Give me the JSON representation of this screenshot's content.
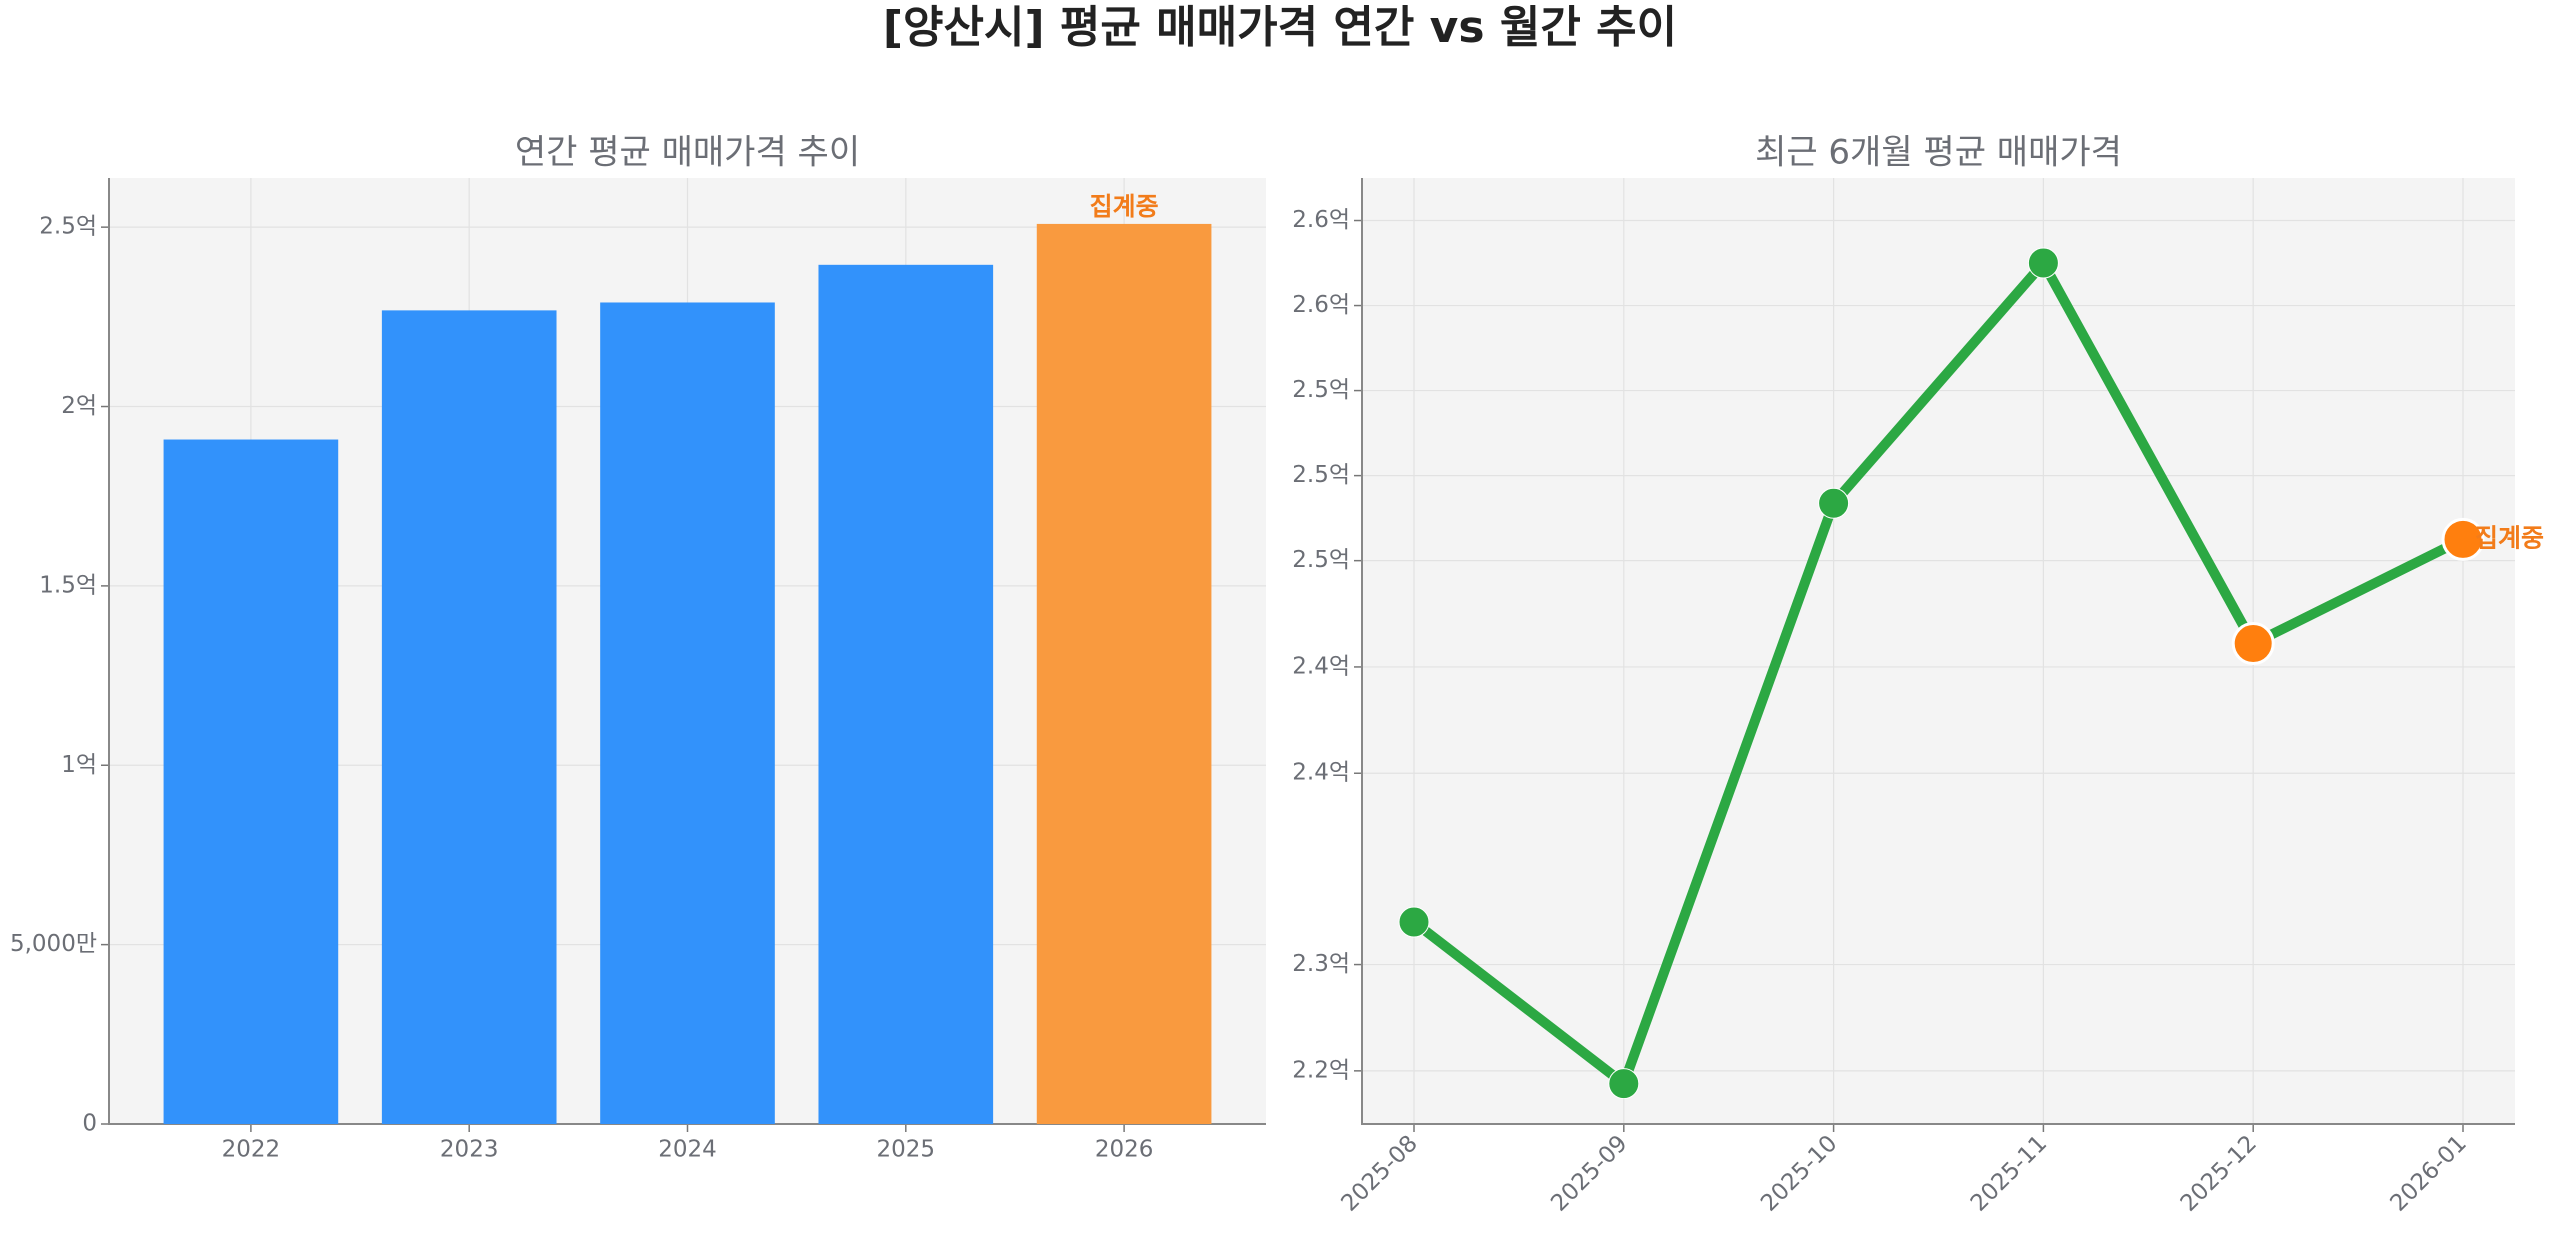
{
  "title": "[양산시] 평균 매매가격 연간 vs 월간 추이",
  "chart_data": [
    {
      "type": "bar",
      "title": "연간 평균 매매가격 추이",
      "categories": [
        "2022",
        "2023",
        "2024",
        "2025",
        "2026"
      ],
      "values": [
        190800000,
        226800000,
        229000000,
        239500000,
        250900000
      ],
      "colors": [
        "#3292fb",
        "#3292fb",
        "#3292fb",
        "#3292fb",
        "#f99a3f"
      ],
      "annotation": "집계중",
      "annotation_color": "#f27c1a",
      "ylim": [
        0,
        263700000
      ],
      "yticks": [
        0,
        {
          "value": 50000000,
          "label": "5,000만"
        },
        {
          "value": 100000000,
          "label": "1억"
        },
        {
          "value": 150000000,
          "label": "1.5억"
        },
        {
          "value": 200000000,
          "label": "2억"
        },
        {
          "value": 250000000,
          "label": "2.5억"
        }
      ],
      "grid": true
    },
    {
      "type": "line",
      "title": "최근 6개월 평균 매매가격",
      "categories": [
        "2025-08",
        "2025-09",
        "2025-10",
        "2025-11",
        "2025-12",
        "2026-01"
      ],
      "values": [
        228000000,
        220400000,
        247700000,
        259000000,
        241100000,
        246000000
      ],
      "color": "#2ca843",
      "marker_colors": [
        "#2ca843",
        "#2ca843",
        "#2ca843",
        "#2ca843",
        "#ff7f0e",
        "#ff7f0e"
      ],
      "annotation": "집계중",
      "annotation_color": "#f27c1a",
      "ylim": [
        218500000,
        263000000
      ],
      "yticks": [
        {
          "value": 221000000,
          "label": "2.2억"
        },
        {
          "value": 226000000,
          "label": "2.3억"
        },
        {
          "value": 235000000,
          "label": "2.4억"
        },
        {
          "value": 240000000,
          "label": "2.4억"
        },
        {
          "value": 245000000,
          "label": "2.5억"
        },
        {
          "value": 249000000,
          "label": "2.5억"
        },
        {
          "value": 253000000,
          "label": "2.5억"
        },
        {
          "value": 257000000,
          "label": "2.6억"
        },
        {
          "value": 261000000,
          "label": "2.6억"
        }
      ],
      "grid": true
    }
  ]
}
